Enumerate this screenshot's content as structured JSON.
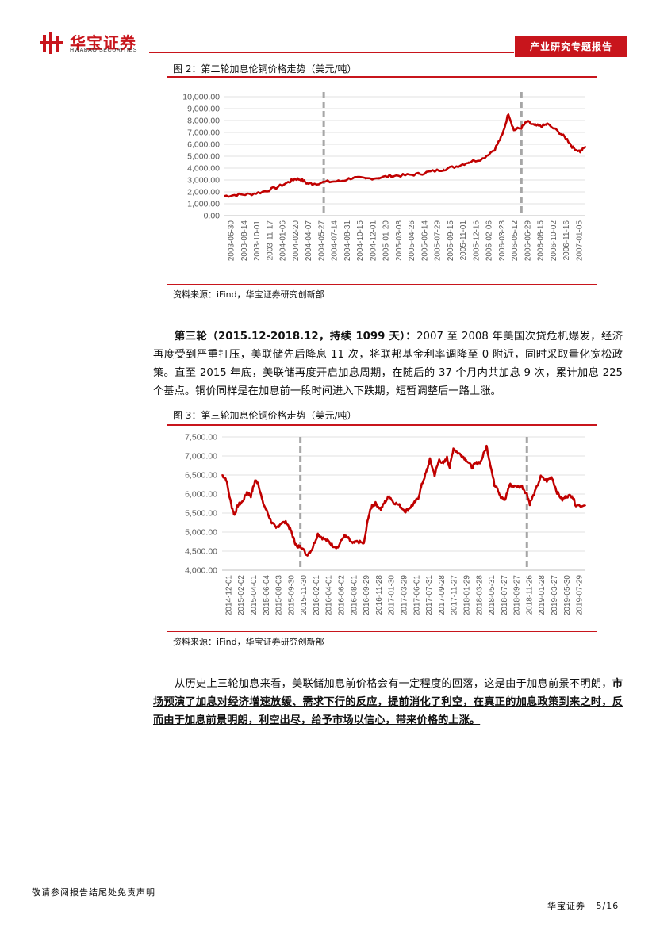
{
  "header": {
    "brand_cn": "华宝证券",
    "brand_en": "HWABAO SECURITIES",
    "report_type": "产业研究专题报告"
  },
  "figure2": {
    "title": "图 2：第二轮加息伦铜价格走势（美元/吨）",
    "source": "资料来源：iFind，华宝证券研究创新部"
  },
  "figure3": {
    "title": "图 3：第三轮加息伦铜价格走势（美元/吨）",
    "source": "资料来源：iFind，华宝证券研究创新部"
  },
  "paragraph1": {
    "bold": "第三轮（2015.12-2018.12，持续 1099 天）：",
    "text": "2007 至 2008 年美国次贷危机爆发，经济再度受到严重打压，美联储先后降息 11 次，将联邦基金利率调降至 0 附近，同时采取量化宽松政策。直至 2015 年底，美联储再度开启加息周期，在随后的 37 个月内共加息 9 次，累计加息 225 个基点。铜价同样是在加息前一段时间进入下跌期，短暂调整后一路上涨。"
  },
  "paragraph2": {
    "text": "从历史上三轮加息来看，美联储加息前价格会有一定程度的回落，这是由于加息前景不明朗，",
    "underlined": "市场预演了加息对经济增速放缓、需求下行的反应，提前消化了利空，在真正的加息政策到来之时，反而由于加息前景明朗，利空出尽，给予市场以信心，带来价格的上涨。"
  },
  "footer": {
    "disclaimer": "敬请参阅报告结尾处免责声明",
    "company": "华宝证券",
    "page": "5/16"
  },
  "colors": {
    "brand_red": "#c8151c",
    "line_red": "#c00000",
    "marker_gray": "#a6a6a6"
  },
  "chart_data": [
    {
      "type": "line",
      "title": "",
      "ylim": [
        0,
        10000
      ],
      "y_ticks": [
        "10,000.00",
        "9,000.00",
        "8,000.00",
        "7,000.00",
        "6,000.00",
        "5,000.00",
        "4,000.00",
        "3,000.00",
        "2,000.00",
        "1,000.00",
        "0.00"
      ],
      "x_tick_labels": [
        "2003-06-30",
        "2003-08-14",
        "2003-10-01",
        "2003-11-17",
        "2004-01-06",
        "2004-02-20",
        "2004-04-07",
        "2004-05-27",
        "2004-07-14",
        "2004-08-31",
        "2004-10-15",
        "2004-12-01",
        "2005-01-20",
        "2005-03-08",
        "2005-04-26",
        "2005-06-14",
        "2005-07-29",
        "2005-09-15",
        "2005-11-01",
        "2005-12-16",
        "2006-02-06",
        "2006-03-23",
        "2006-05-12",
        "2006-06-29",
        "2006-08-15",
        "2006-10-02",
        "2006-11-16",
        "2007-01-05"
      ],
      "x_start": "2003-06-30",
      "x_end": "2007-02-20",
      "markers": [
        "2004-06-30",
        "2006-06-29"
      ],
      "series": [
        {
          "color": "#c00000",
          "points": [
            [
              "2003-06-30",
              1650
            ],
            [
              "2003-08-14",
              1760
            ],
            [
              "2003-10-01",
              1800
            ],
            [
              "2003-11-17",
              2000
            ],
            [
              "2004-01-06",
              2350
            ],
            [
              "2004-02-20",
              2800
            ],
            [
              "2004-03-15",
              3100
            ],
            [
              "2004-04-07",
              3050
            ],
            [
              "2004-05-01",
              2700
            ],
            [
              "2004-05-27",
              2700
            ],
            [
              "2004-07-14",
              2850
            ],
            [
              "2004-08-31",
              2900
            ],
            [
              "2004-10-15",
              3200
            ],
            [
              "2004-12-01",
              3100
            ],
            [
              "2005-01-20",
              3200
            ],
            [
              "2005-03-08",
              3350
            ],
            [
              "2005-04-26",
              3400
            ],
            [
              "2005-06-14",
              3500
            ],
            [
              "2005-07-29",
              3700
            ],
            [
              "2005-09-15",
              3900
            ],
            [
              "2005-11-01",
              4150
            ],
            [
              "2005-12-16",
              4500
            ],
            [
              "2006-02-06",
              4800
            ],
            [
              "2006-03-23",
              5600
            ],
            [
              "2006-04-20",
              6800
            ],
            [
              "2006-05-12",
              8600
            ],
            [
              "2006-06-01",
              7200
            ],
            [
              "2006-06-29",
              7400
            ],
            [
              "2006-07-20",
              7900
            ],
            [
              "2006-08-15",
              7600
            ],
            [
              "2006-09-10",
              7500
            ],
            [
              "2006-10-02",
              7700
            ],
            [
              "2006-11-16",
              7000
            ],
            [
              "2006-12-15",
              6400
            ],
            [
              "2007-01-05",
              5700
            ],
            [
              "2007-02-01",
              5400
            ],
            [
              "2007-02-20",
              5800
            ]
          ]
        }
      ]
    },
    {
      "type": "line",
      "title": "",
      "ylim": [
        4000,
        7500
      ],
      "y_ticks": [
        "7,500.00",
        "7,000.00",
        "6,500.00",
        "6,000.00",
        "5,500.00",
        "5,000.00",
        "4,500.00",
        "4,000.00"
      ],
      "x_tick_labels": [
        "2014-12-01",
        "2015-02-02",
        "2015-04-01",
        "2015-06-04",
        "2015-08-03",
        "2015-09-30",
        "2015-11-30",
        "2016-02-01",
        "2016-04-01",
        "2016-06-02",
        "2016-08-01",
        "2016-09-29",
        "2016-11-28",
        "2017-01-30",
        "2017-03-29",
        "2017-06-01",
        "2017-07-31",
        "2017-09-28",
        "2017-11-27",
        "2018-01-29",
        "2018-03-28",
        "2018-05-31",
        "2018-07-27",
        "2018-09-27",
        "2018-11-26",
        "2019-01-28",
        "2019-03-27",
        "2019-05-30",
        "2019-07-29"
      ],
      "x_start": "2014-12-01",
      "x_end": "2019-09-30",
      "markers": [
        "2015-12-16",
        "2018-12-20"
      ],
      "series": [
        {
          "color": "#c00000",
          "points": [
            [
              "2014-12-01",
              6500
            ],
            [
              "2014-12-20",
              6400
            ],
            [
              "2015-01-15",
              5700
            ],
            [
              "2015-01-30",
              5450
            ],
            [
              "2015-02-15",
              5700
            ],
            [
              "2015-03-10",
              5800
            ],
            [
              "2015-04-01",
              6050
            ],
            [
              "2015-04-20",
              5950
            ],
            [
              "2015-05-10",
              6350
            ],
            [
              "2015-05-25",
              6300
            ],
            [
              "2015-06-15",
              5800
            ],
            [
              "2015-07-10",
              5500
            ],
            [
              "2015-07-30",
              5250
            ],
            [
              "2015-08-20",
              5100
            ],
            [
              "2015-09-15",
              5250
            ],
            [
              "2015-10-10",
              5250
            ],
            [
              "2015-10-30",
              5050
            ],
            [
              "2015-11-15",
              4800
            ],
            [
              "2015-11-30",
              4600
            ],
            [
              "2015-12-16",
              4650
            ],
            [
              "2016-01-15",
              4400
            ],
            [
              "2016-02-10",
              4550
            ],
            [
              "2016-03-10",
              4950
            ],
            [
              "2016-04-01",
              4850
            ],
            [
              "2016-05-01",
              4750
            ],
            [
              "2016-05-20",
              4650
            ],
            [
              "2016-06-15",
              4600
            ],
            [
              "2016-07-15",
              4900
            ],
            [
              "2016-08-01",
              4850
            ],
            [
              "2016-08-25",
              4700
            ],
            [
              "2016-09-20",
              4750
            ],
            [
              "2016-10-20",
              4700
            ],
            [
              "2016-11-10",
              5400
            ],
            [
              "2016-11-28",
              5700
            ],
            [
              "2016-12-15",
              5750
            ],
            [
              "2017-01-10",
              5600
            ],
            [
              "2017-01-30",
              5800
            ],
            [
              "2017-02-20",
              5950
            ],
            [
              "2017-03-10",
              5800
            ],
            [
              "2017-04-10",
              5700
            ],
            [
              "2017-05-10",
              5550
            ],
            [
              "2017-06-01",
              5650
            ],
            [
              "2017-06-20",
              5750
            ],
            [
              "2017-07-10",
              5900
            ],
            [
              "2017-07-31",
              6300
            ],
            [
              "2017-08-20",
              6600
            ],
            [
              "2017-09-05",
              6900
            ],
            [
              "2017-09-28",
              6500
            ],
            [
              "2017-10-20",
              6900
            ],
            [
              "2017-11-10",
              6800
            ],
            [
              "2017-11-27",
              6950
            ],
            [
              "2017-12-10",
              6700
            ],
            [
              "2017-12-28",
              7200
            ],
            [
              "2018-01-15",
              7100
            ],
            [
              "2018-02-10",
              7000
            ],
            [
              "2018-03-01",
              6900
            ],
            [
              "2018-03-28",
              6700
            ],
            [
              "2018-04-15",
              6800
            ],
            [
              "2018-05-10",
              6850
            ],
            [
              "2018-06-07",
              7250
            ],
            [
              "2018-06-25",
              6800
            ],
            [
              "2018-07-15",
              6250
            ],
            [
              "2018-07-27",
              6200
            ],
            [
              "2018-08-15",
              5900
            ],
            [
              "2018-09-05",
              5850
            ],
            [
              "2018-09-27",
              6250
            ],
            [
              "2018-10-20",
              6200
            ],
            [
              "2018-11-26",
              6200
            ],
            [
              "2018-12-20",
              6000
            ],
            [
              "2019-01-03",
              5750
            ],
            [
              "2019-01-28",
              6050
            ],
            [
              "2019-02-25",
              6450
            ],
            [
              "2019-03-27",
              6350
            ],
            [
              "2019-04-20",
              6450
            ],
            [
              "2019-05-15",
              6050
            ],
            [
              "2019-06-10",
              5850
            ],
            [
              "2019-07-01",
              5950
            ],
            [
              "2019-07-29",
              5950
            ],
            [
              "2019-08-15",
              5700
            ],
            [
              "2019-09-30",
              5700
            ]
          ]
        }
      ]
    }
  ]
}
